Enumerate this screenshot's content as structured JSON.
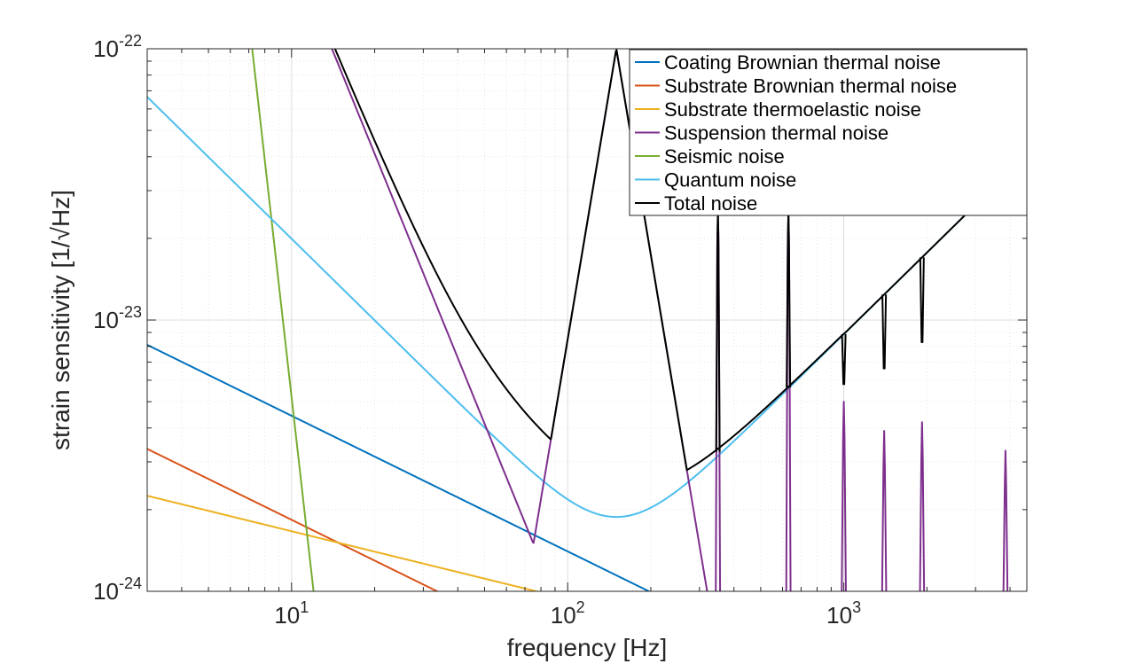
{
  "chart_data": {
    "type": "line",
    "title": "",
    "xlabel": "frequency [Hz]",
    "ylabel": "strain sensitivity [1/√Hz]",
    "xscale": "log",
    "yscale": "log",
    "xlim": [
      3,
      4600
    ],
    "ylim": [
      1e-24,
      1e-22
    ],
    "grid": true,
    "legend_position": "top-right",
    "x_ticks": [
      {
        "base": "10",
        "exp": "1",
        "value": 10
      },
      {
        "base": "10",
        "exp": "2",
        "value": 100
      },
      {
        "base": "10",
        "exp": "3",
        "value": 1000
      }
    ],
    "y_ticks": [
      {
        "base": "10",
        "exp": "-24",
        "value": 1e-24
      },
      {
        "base": "10",
        "exp": "-23",
        "value": 1e-23
      },
      {
        "base": "10",
        "exp": "-22",
        "value": 1e-22
      }
    ],
    "series": [
      {
        "name": "Coating Brownian thermal noise",
        "color": "#0072BD",
        "kind": "power",
        "anchor": {
          "f": 3,
          "h": 8.1e-24
        },
        "slope": -0.5
      },
      {
        "name": "Substrate Brownian thermal noise",
        "color": "#D95319",
        "kind": "power",
        "anchor": {
          "f": 3,
          "h": 3.35e-24
        },
        "slope": -0.5
      },
      {
        "name": "Substrate thermoelastic noise",
        "color": "#EDB120",
        "kind": "power",
        "anchor": {
          "f": 3,
          "h": 2.25e-24
        },
        "slope": -0.25
      },
      {
        "name": "Suspension thermal noise",
        "color": "#7E2F8E",
        "kind": "suspension",
        "base_anchor": {
          "f": 14,
          "h": 1e-22
        },
        "base_slope": -2.5,
        "resonances": [
          {
            "f": 150,
            "h": 1e-22
          },
          {
            "f": 350,
            "h": 2.5e-23
          },
          {
            "f": 630,
            "h": 2.5e-23
          },
          {
            "f": 1000,
            "h": 5e-24
          },
          {
            "f": 1400,
            "h": 3.9e-24
          },
          {
            "f": 1920,
            "h": 4.2e-24
          },
          {
            "f": 3850,
            "h": 3.3e-24
          }
        ]
      },
      {
        "name": "Seismic noise",
        "color": "#77AC30",
        "kind": "power",
        "anchor": {
          "f": 7.2,
          "h": 1e-22
        },
        "slope": -9.0
      },
      {
        "name": "Quantum noise",
        "color": "#4DBEEE",
        "kind": "quantum",
        "f0": 150,
        "h0": 1.88e-24
      },
      {
        "name": "Total noise",
        "color": "#000000",
        "kind": "total",
        "offset_anchor": {
          "f": 100,
          "h": 5e-25
        },
        "offset_slope": -1.2,
        "resonance_peaks": [
          {
            "f": 150,
            "h": 1e-22
          },
          {
            "f": 350,
            "h": 2.5e-23
          },
          {
            "f": 630,
            "h": 2.5e-23
          },
          {
            "f": 1000,
            "h": 7e-24
          },
          {
            "f": 1400,
            "h": 8e-24
          },
          {
            "f": 1920,
            "h": 1e-23
          }
        ]
      }
    ]
  }
}
